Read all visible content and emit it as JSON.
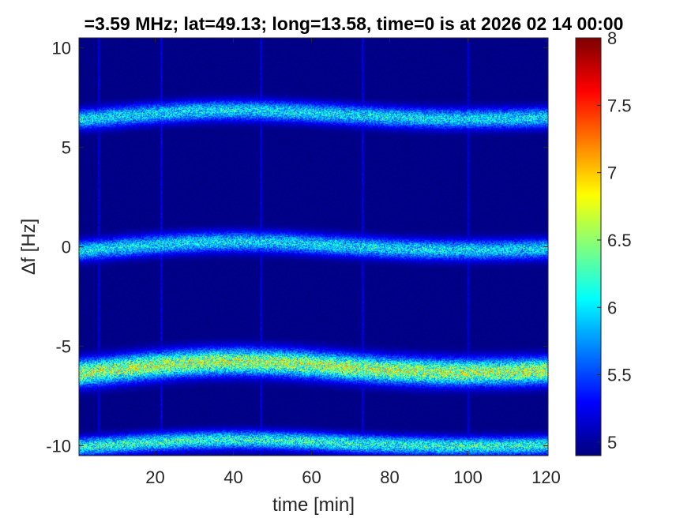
{
  "chart_data": {
    "type": "heatmap",
    "title": "=3.59 MHz;  lat=49.13; long=13.58, time=0 is at 2026 02 14 00:00",
    "xlabel": "time [min]",
    "ylabel": "∆f [Hz]",
    "xlim": [
      0.5,
      120.5
    ],
    "ylim": [
      -10.5,
      10.5
    ],
    "xticks": [
      20,
      40,
      60,
      80,
      100,
      120
    ],
    "xtick_labels": [
      "20",
      "40",
      "60",
      "80",
      "100",
      "120"
    ],
    "yticks": [
      -10,
      -5,
      0,
      5,
      10
    ],
    "ytick_labels": [
      "-10",
      "-5",
      "0",
      "5",
      "10"
    ],
    "colorbar": {
      "colormap": "jet",
      "range": [
        4.9,
        8
      ],
      "ticks": [
        5,
        5.5,
        6,
        6.5,
        7,
        7.5,
        8
      ],
      "tick_labels": [
        "5",
        "5.5",
        "6",
        "6.5",
        "7",
        "7.5",
        "8"
      ]
    },
    "bands": [
      {
        "name": "",
        "center_hz": 6.6,
        "wobble_hz": 0.4,
        "width_hz": 1.0,
        "peak": 6.2
      },
      {
        "name": "",
        "center_hz": 0.0,
        "wobble_hz": 0.4,
        "width_hz": 1.0,
        "peak": 6.2
      },
      {
        "name": "",
        "center_hz": -6.1,
        "wobble_hz": 0.5,
        "width_hz": 1.3,
        "peak": 6.9
      },
      {
        "name": "",
        "center_hz": -9.9,
        "wobble_hz": 0.3,
        "width_hz": 0.9,
        "peak": 6.4
      }
    ],
    "vertical_streaks_min": [
      5.5,
      21.5,
      47,
      73,
      100
    ]
  }
}
